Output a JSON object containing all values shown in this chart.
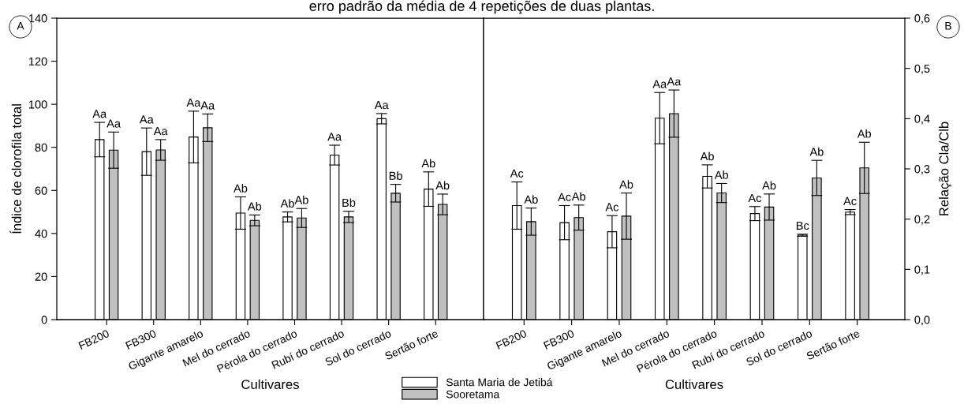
{
  "chart_data": [
    {
      "type": "bar",
      "ylabel": "Índice de clorofila total",
      "xlabel": "Cultivares",
      "categories": [
        "FB200",
        "FB300",
        "Gigante amarelo",
        "Mel do cerrado",
        "Pérola do cerrado",
        "Rubí do cerrado",
        "Sol do cerrado",
        "Sertão forte"
      ],
      "series": [
        {
          "name": "Santa Maria de Jetibá",
          "color": "#ffffff",
          "values": [
            83.6,
            78,
            84.8,
            49.5,
            47.7,
            76.4,
            93.3,
            60.6
          ],
          "errors": [
            8,
            11,
            12,
            7.5,
            2.3,
            4.6,
            2.4,
            8
          ],
          "value_labels": [
            "Aa",
            "Aa",
            "Aa",
            "Ab",
            "Ab",
            "Aa",
            "Aa",
            "Ab"
          ]
        },
        {
          "name": "Sooretama",
          "color": "#c0c0c0",
          "values": [
            78.7,
            78.8,
            89.1,
            46.1,
            47.2,
            47.7,
            58.7,
            53.5
          ],
          "errors": [
            8.4,
            4.8,
            6.4,
            2.5,
            4.4,
            2.6,
            4.1,
            4.8
          ],
          "value_labels": [
            "Aa",
            "Aa",
            "Aa",
            "Ab",
            "Ab",
            "Bb",
            "Bb",
            "Ab"
          ]
        }
      ],
      "ylim": [
        0,
        140
      ],
      "yticks": [
        0,
        20,
        40,
        60,
        80,
        100,
        120,
        140
      ],
      "grid": false,
      "legend": "bottom",
      "annotations": [
        "A",
        "erro padrão da média de 4 repetições de duas plantas."
      ]
    },
    {
      "type": "bar",
      "ylabel": "Relação Cla/Clb",
      "xlabel": "Cultivares",
      "categories": [
        "FB200",
        "FB300",
        "Gigante amarelo",
        "Mel do cerrado",
        "Pérola do cerrado",
        "Rubí do cerrado",
        "Sol do cerrado",
        "Sertão forte"
      ],
      "series": [
        {
          "color": "#ffffff",
          "values": [
            0.227,
            0.193,
            0.175,
            0.401,
            0.285,
            0.211,
            0.168,
            0.214
          ],
          "errors": [
            0.047,
            0.034,
            0.032,
            0.051,
            0.023,
            0.014,
            0.002,
            0.005
          ],
          "value_labels": [
            "Ac",
            "Ac",
            "Ac",
            "Aa",
            "Ab",
            "Ac",
            "Bc",
            "Ac"
          ]
        },
        {
          "color": "#c0c0c0",
          "values": [
            0.195,
            0.203,
            0.206,
            0.41,
            0.252,
            0.224,
            0.282,
            0.302
          ],
          "errors": [
            0.027,
            0.025,
            0.046,
            0.047,
            0.019,
            0.026,
            0.035,
            0.051
          ],
          "value_labels": [
            "Ab",
            "Ab",
            "Ab",
            "Aa",
            "Ab",
            "Ab",
            "Ab",
            "Ab"
          ]
        }
      ],
      "ylim": [
        0,
        0.6
      ],
      "yticks": [
        {
          "value": 0,
          "label": "0,0"
        },
        {
          "value": 0.1,
          "label": "0,1"
        },
        {
          "value": 0.2,
          "label": "0,2"
        },
        {
          "value": 0.3,
          "label": "0,3"
        },
        {
          "value": 0.4,
          "label": "0,4"
        },
        {
          "value": 0.5,
          "label": "0,5"
        },
        {
          "value": 0.6,
          "label": "0,6"
        }
      ],
      "grid": false,
      "annotations": [
        "B"
      ]
    }
  ]
}
